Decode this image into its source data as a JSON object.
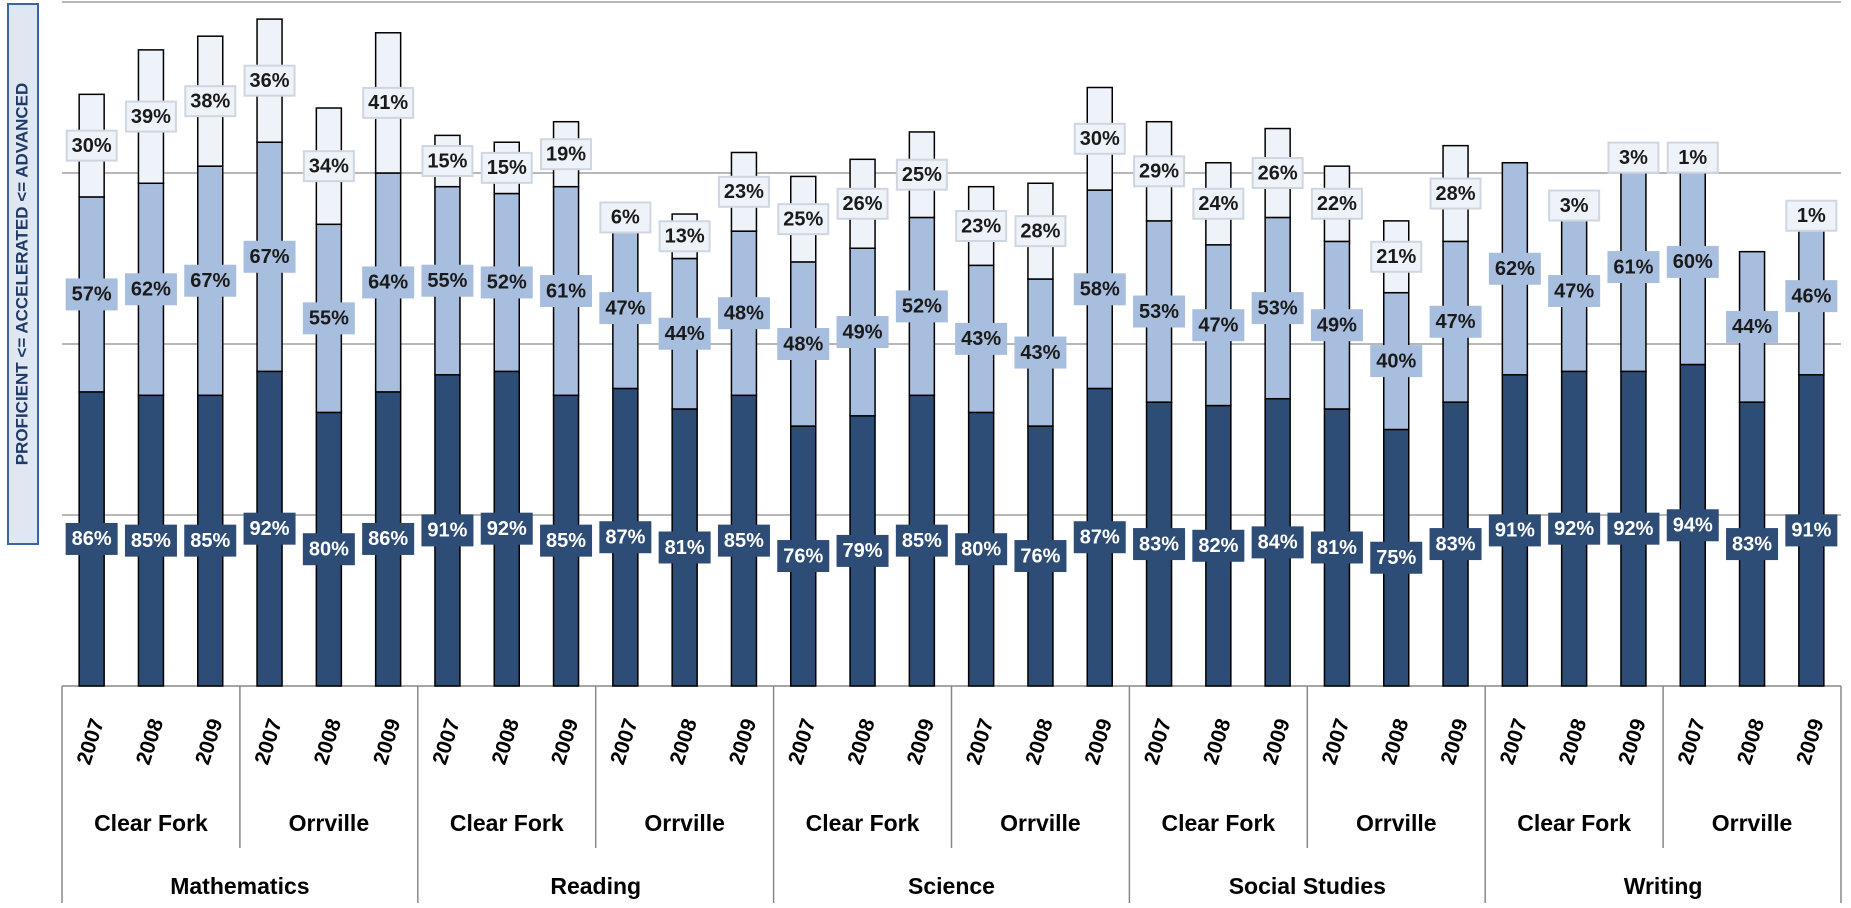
{
  "chart_data": {
    "type": "stacked_bar",
    "y_axis_label": "PROFICIENT <= ACCELERATED <= ADVANCED",
    "categories": [
      "2007",
      "2008",
      "2009",
      "2007",
      "2008",
      "2009",
      "2007",
      "2008",
      "2009",
      "2007",
      "2008",
      "2009",
      "2007",
      "2008",
      "2009",
      "2007",
      "2008",
      "2009",
      "2007",
      "2008",
      "2009",
      "2007",
      "2008",
      "2009",
      "2007",
      "2008",
      "2009",
      "2007",
      "2008",
      "2009"
    ],
    "schools": [
      "Clear Fork",
      "Orrville",
      "Clear Fork",
      "Orrville",
      "Clear Fork",
      "Orrville",
      "Clear Fork",
      "Orrville",
      "Clear Fork",
      "Orrville"
    ],
    "subjects": [
      "Mathematics",
      "Reading",
      "Science",
      "Social Studies",
      "Writing"
    ],
    "series": [
      {
        "color": "#2e4d76",
        "label_color": "#ffffff",
        "values": [
          86,
          85,
          85,
          92,
          80,
          86,
          91,
          92,
          85,
          87,
          81,
          85,
          76,
          79,
          85,
          80,
          76,
          87,
          83,
          82,
          84,
          81,
          75,
          83,
          91,
          92,
          92,
          94,
          83,
          91
        ],
        "value_labels": [
          "86%",
          "85%",
          "85%",
          "92%",
          "80%",
          "86%",
          "91%",
          "92%",
          "85%",
          "87%",
          "81%",
          "85%",
          "76%",
          "79%",
          "85%",
          "80%",
          "76%",
          "87%",
          "83%",
          "82%",
          "84%",
          "81%",
          "75%",
          "83%",
          "91%",
          "92%",
          "92%",
          "94%",
          "83%",
          "91%"
        ]
      },
      {
        "color": "#a8bedf",
        "label_color": "#1a1a1a",
        "values": [
          57,
          62,
          67,
          67,
          55,
          64,
          55,
          52,
          61,
          47,
          44,
          48,
          48,
          49,
          52,
          43,
          43,
          58,
          53,
          47,
          53,
          49,
          40,
          47,
          62,
          47,
          61,
          60,
          44,
          46
        ],
        "value_labels": [
          "57%",
          "62%",
          "67%",
          "67%",
          "55%",
          "64%",
          "55%",
          "52%",
          "61%",
          "47%",
          "44%",
          "48%",
          "48%",
          "49%",
          "52%",
          "43%",
          "43%",
          "58%",
          "53%",
          "47%",
          "53%",
          "49%",
          "40%",
          "47%",
          "62%",
          "47%",
          "61%",
          "60%",
          "44%",
          "46%"
        ]
      },
      {
        "color": "#eef2f9",
        "label_color": "#1a1a1a",
        "values": [
          30,
          39,
          38,
          36,
          34,
          41,
          15,
          15,
          19,
          6,
          13,
          23,
          25,
          26,
          25,
          23,
          28,
          30,
          29,
          24,
          26,
          22,
          21,
          28,
          null,
          3,
          3,
          1,
          null,
          1
        ],
        "value_labels": [
          "30%",
          "39%",
          "38%",
          "36%",
          "34%",
          "41%",
          "15%",
          "15%",
          "19%",
          "6%",
          "13%",
          "23%",
          "25%",
          "26%",
          "25%",
          "23%",
          "28%",
          "30%",
          "29%",
          "24%",
          "26%",
          "22%",
          "21%",
          "28%",
          null,
          "3%",
          "3%",
          "1%",
          null,
          "1%"
        ]
      }
    ],
    "ylim": [
      0,
      200
    ],
    "yticks": [
      50,
      100,
      150,
      200
    ],
    "grid": true,
    "show_ytick_labels": false
  }
}
